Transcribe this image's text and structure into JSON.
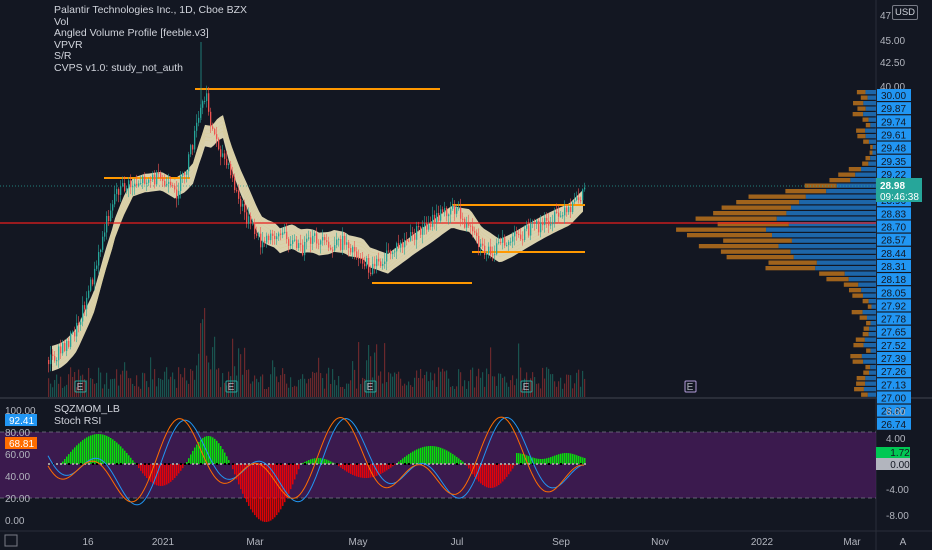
{
  "legend": {
    "title": "Palantir Technologies Inc., 1D, Cboe BZX",
    "lines": [
      "Vol",
      "Angled Volume Profile [feeble.v3]",
      "VPVR",
      "S/R",
      "CVPS v1.0: study_not_auth"
    ]
  },
  "currency_button": "USD",
  "price_axis_top": [
    "47.50",
    "45.00",
    "42.50",
    "40.00"
  ],
  "profile_axis": [
    "30.00",
    "29.87",
    "29.74",
    "29.61",
    "29.48",
    "29.35",
    "29.22",
    "29.09",
    "28.96",
    "28.83",
    "28.70",
    "28.57",
    "28.44",
    "28.31",
    "28.18",
    "28.05",
    "27.92",
    "27.78",
    "27.65",
    "27.52",
    "27.39",
    "27.26",
    "27.13",
    "27.00",
    "26.87",
    "26.74"
  ],
  "last_price": "28.98",
  "countdown": "09:46:38",
  "sub_legend": [
    "SQZMOM_LB",
    "Stoch RSI"
  ],
  "stoch_axis": [
    "100.00",
    "80.00",
    "60.00",
    "40.00",
    "20.00",
    "0.00"
  ],
  "stoch_values": {
    "k": "92.41",
    "d": "68.81"
  },
  "sqz_axis": [
    "8.00",
    "4.00",
    "0.00",
    "-4.00",
    "-8.00"
  ],
  "sqz_values": {
    "mom": "1.72",
    "zero": "0.00"
  },
  "time_axis": [
    "16",
    "2021",
    "Mar",
    "May",
    "Jul",
    "Sep",
    "Nov",
    "2022",
    "Mar"
  ],
  "earnings_marker": "E",
  "colors": {
    "background": "#131722",
    "up": "#26a69a",
    "down": "#ef5350",
    "resistance": "#ff9800",
    "support_red": "#e91e1e",
    "ribbon": "#f5ecc2",
    "profile_blue": "#2196f3",
    "profile_orange": "#ff9800",
    "purple_band": "#4a1c5e",
    "mom_green": "#00ff00",
    "mom_red": "#ff0000",
    "k_line": "#2196f3",
    "d_line": "#ff6d00",
    "last_price_bg": "#26a69a",
    "profile_tag_bg": "#2196f3"
  }
}
